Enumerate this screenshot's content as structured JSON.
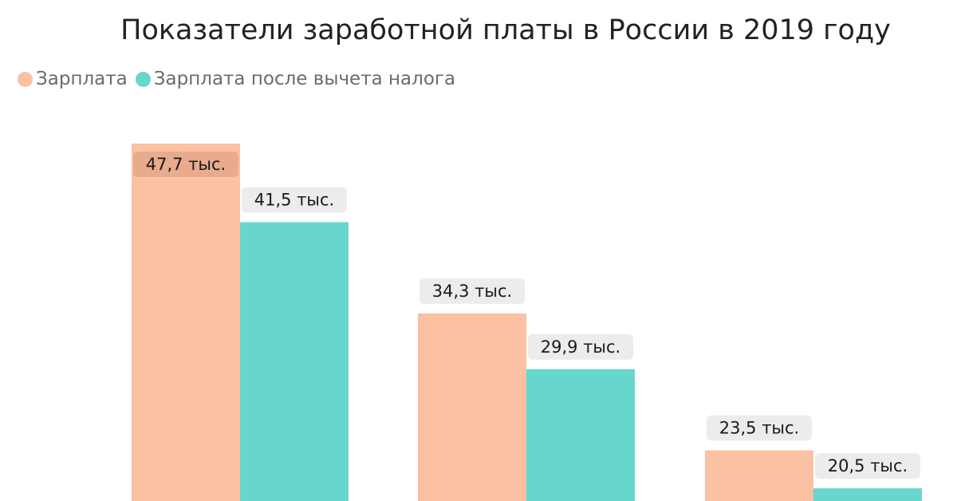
{
  "chart_data": {
    "type": "bar",
    "title": "Показатели заработной платы в России в 2019 году",
    "categories": [
      "",
      "",
      ""
    ],
    "series": [
      {
        "name": "Зарплата",
        "color": "#fcc0a2",
        "values": [
          47.7,
          34.3,
          23.5
        ],
        "labels": [
          "47,7 тыс.",
          "34,3 тыс.",
          "23,5 тыс."
        ]
      },
      {
        "name": "Зарплата после вычета налога",
        "color": "#67d6cc",
        "values": [
          41.5,
          29.9,
          20.5
        ],
        "labels": [
          "41,5 тыс.",
          "29,9 тыс.",
          "20,5 тыс."
        ]
      }
    ],
    "ylim": [
      19.5,
      47.7
    ],
    "grid": false,
    "legend_position": "top-left",
    "label_box_color": "#ececec",
    "label_box_color_inside": "#e8ab8e"
  }
}
